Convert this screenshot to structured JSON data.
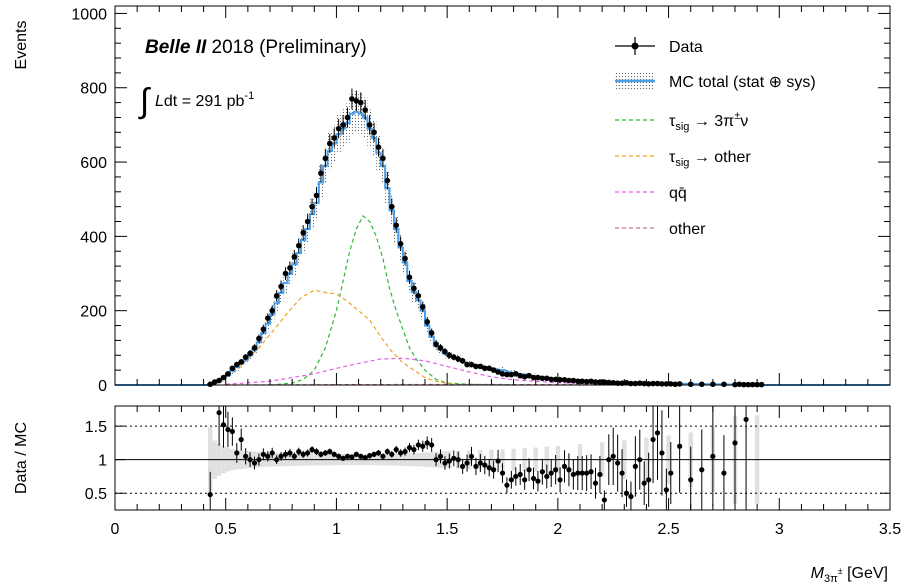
{
  "chart_data": [
    {
      "type": "line",
      "experiment": "Belle II",
      "title_rest": " 2018 (Preliminary)",
      "lumi_integral": "∫",
      "lumi_L": "L",
      "lumi_text": "dt = 291 pb",
      "lumi_exp": "-1",
      "ylabel": "Events",
      "xlabel_M": "M",
      "xlabel_sub": "3π",
      "xlabel_sup": "±",
      "xlabel_unit": " [GeV]",
      "xlim": [
        0,
        3.5
      ],
      "ylim": [
        0,
        1020
      ],
      "yticks": [
        "0",
        "200",
        "400",
        "600",
        "800",
        "1000"
      ],
      "legend_position": "top-right",
      "legend": [
        {
          "key": "data",
          "label": "Data"
        },
        {
          "key": "mc",
          "label": "MC total (stat ⊕ sys)"
        },
        {
          "key": "sig",
          "label_pre": "τ",
          "label_sub": "sig",
          "label_post": " → 3π",
          "label_sup": "±",
          "label_end": "ν"
        },
        {
          "key": "sigo",
          "label_pre": "τ",
          "label_sub": "sig",
          "label_post": " → other",
          "label_sup": "",
          "label_end": ""
        },
        {
          "key": "qq",
          "label": "qq̄"
        },
        {
          "key": "oth",
          "label": "other"
        }
      ],
      "colors": {
        "mc": "#4a9fe8",
        "sig": "#2fb82f",
        "sigo": "#f0a020",
        "qq": "#e860e8",
        "oth": "#c07890",
        "band": "#b0b0b0"
      },
      "data_points": {
        "x": [
          0.43,
          0.45,
          0.47,
          0.49,
          0.51,
          0.53,
          0.55,
          0.57,
          0.59,
          0.61,
          0.63,
          0.65,
          0.67,
          0.69,
          0.71,
          0.73,
          0.75,
          0.77,
          0.79,
          0.81,
          0.83,
          0.85,
          0.87,
          0.89,
          0.91,
          0.93,
          0.95,
          0.97,
          0.99,
          1.01,
          1.03,
          1.05,
          1.07,
          1.09,
          1.11,
          1.13,
          1.15,
          1.17,
          1.19,
          1.21,
          1.23,
          1.25,
          1.27,
          1.29,
          1.31,
          1.33,
          1.35,
          1.37,
          1.39,
          1.41,
          1.43,
          1.45,
          1.47,
          1.49,
          1.51,
          1.53,
          1.55,
          1.57,
          1.59,
          1.61,
          1.63,
          1.65,
          1.67,
          1.69,
          1.71,
          1.73,
          1.75,
          1.77,
          1.79,
          1.81,
          1.83,
          1.85,
          1.87,
          1.89,
          1.91,
          1.93,
          1.95,
          1.97,
          1.99,
          2.01,
          2.03,
          2.05,
          2.07,
          2.09,
          2.11,
          2.13,
          2.15,
          2.17,
          2.19,
          2.21,
          2.23,
          2.25,
          2.27,
          2.29,
          2.31,
          2.33,
          2.35,
          2.37,
          2.39,
          2.41,
          2.43,
          2.45,
          2.47,
          2.49,
          2.51,
          2.53,
          2.55,
          2.6,
          2.65,
          2.7,
          2.75,
          2.8,
          2.82,
          2.84,
          2.86,
          2.88,
          2.9,
          2.92
        ],
        "y": [
          2,
          8,
          12,
          20,
          30,
          45,
          55,
          62,
          75,
          85,
          100,
          125,
          150,
          180,
          200,
          240,
          265,
          300,
          315,
          345,
          375,
          410,
          440,
          480,
          510,
          570,
          610,
          650,
          665,
          690,
          700,
          720,
          770,
          765,
          760,
          740,
          700,
          680,
          640,
          610,
          550,
          480,
          430,
          380,
          340,
          290,
          260,
          240,
          210,
          170,
          140,
          110,
          100,
          90,
          80,
          75,
          70,
          65,
          55,
          55,
          50,
          50,
          45,
          45,
          40,
          35,
          30,
          28,
          28,
          30,
          25,
          22,
          25,
          20,
          20,
          18,
          18,
          15,
          15,
          14,
          14,
          12,
          12,
          10,
          10,
          9,
          10,
          8,
          8,
          8,
          7,
          6,
          5,
          5,
          6,
          4,
          4,
          5,
          4,
          3,
          4,
          4,
          3,
          3,
          3,
          2,
          3,
          2,
          2,
          2,
          2,
          1,
          2,
          1,
          1,
          1,
          1,
          1
        ]
      },
      "mc_total": {
        "x": [
          0.43,
          0.45,
          0.47,
          0.49,
          0.51,
          0.53,
          0.55,
          0.57,
          0.59,
          0.61,
          0.63,
          0.65,
          0.67,
          0.69,
          0.71,
          0.73,
          0.75,
          0.77,
          0.79,
          0.81,
          0.83,
          0.85,
          0.87,
          0.89,
          0.91,
          0.93,
          0.95,
          0.97,
          0.99,
          1.01,
          1.03,
          1.05,
          1.07,
          1.09,
          1.11,
          1.13,
          1.15,
          1.17,
          1.19,
          1.21,
          1.23,
          1.25,
          1.27,
          1.29,
          1.31,
          1.33,
          1.35,
          1.37,
          1.39,
          1.41,
          1.43,
          1.45,
          1.47,
          1.49,
          1.51,
          1.55,
          1.6,
          1.65,
          1.7,
          1.75,
          1.8,
          1.85,
          1.9,
          1.95,
          2.0,
          2.1,
          2.2,
          2.3,
          2.4,
          2.5,
          2.6,
          2.7,
          2.8,
          2.9
        ],
        "y": [
          2,
          7,
          11,
          18,
          27,
          38,
          48,
          58,
          68,
          80,
          95,
          115,
          140,
          165,
          190,
          220,
          248,
          275,
          300,
          325,
          355,
          390,
          420,
          460,
          490,
          545,
          590,
          630,
          650,
          675,
          690,
          705,
          730,
          735,
          730,
          720,
          690,
          665,
          625,
          590,
          530,
          470,
          420,
          370,
          330,
          280,
          250,
          228,
          200,
          160,
          130,
          105,
          95,
          85,
          78,
          70,
          58,
          52,
          45,
          40,
          33,
          28,
          24,
          20,
          17,
          12,
          9,
          7,
          5,
          4,
          3,
          2,
          1,
          1
        ]
      },
      "components": [
        {
          "key": "sig",
          "x": [
            0.7,
            0.8,
            0.85,
            0.9,
            0.95,
            1.0,
            1.03,
            1.06,
            1.09,
            1.12,
            1.15,
            1.18,
            1.21,
            1.24,
            1.27,
            1.3,
            1.33,
            1.36,
            1.4,
            1.45,
            1.5,
            1.6,
            1.7,
            1.8
          ],
          "y": [
            0,
            5,
            15,
            40,
            100,
            200,
            280,
            360,
            420,
            455,
            440,
            400,
            340,
            260,
            200,
            150,
            100,
            70,
            40,
            15,
            5,
            2,
            1,
            0
          ]
        },
        {
          "key": "sigo",
          "x": [
            0.45,
            0.55,
            0.65,
            0.72,
            0.78,
            0.84,
            0.9,
            0.96,
            1.0,
            1.05,
            1.1,
            1.15,
            1.2,
            1.25,
            1.3,
            1.35,
            1.4,
            1.45,
            1.5,
            1.55
          ],
          "y": [
            5,
            40,
            100,
            150,
            195,
            235,
            255,
            248,
            245,
            225,
            200,
            175,
            130,
            90,
            60,
            40,
            20,
            10,
            5,
            0
          ]
        },
        {
          "key": "qq",
          "x": [
            0.5,
            0.7,
            0.9,
            1.0,
            1.1,
            1.2,
            1.3,
            1.4,
            1.5,
            1.6,
            1.7,
            1.8,
            2.0,
            2.2,
            2.5,
            2.8
          ],
          "y": [
            2,
            10,
            30,
            45,
            58,
            70,
            72,
            65,
            50,
            35,
            22,
            14,
            6,
            3,
            1,
            0
          ]
        },
        {
          "key": "oth",
          "x": [
            0.5,
            1.0,
            1.5,
            2.0,
            2.5,
            3.0
          ],
          "y": [
            0,
            1,
            1.5,
            1,
            0.5,
            0
          ]
        }
      ],
      "colors_band_fill": "#e0e0e0"
    },
    {
      "type": "scatter",
      "ylabel": "Data / MC",
      "xlim": [
        0,
        3.5
      ],
      "ylim": [
        0.25,
        1.8
      ],
      "yticks": [
        "0.5",
        "1",
        "1.5"
      ],
      "xticks": [
        "0",
        "0.5",
        "1",
        "1.5",
        "2",
        "2.5",
        "3",
        "3.5"
      ],
      "ratio": {
        "x": [
          0.43,
          0.47,
          0.49,
          0.51,
          0.53,
          0.55,
          0.57,
          0.59,
          0.61,
          0.63,
          0.65,
          0.67,
          0.69,
          0.71,
          0.73,
          0.75,
          0.77,
          0.79,
          0.81,
          0.83,
          0.85,
          0.87,
          0.89,
          0.91,
          0.93,
          0.95,
          0.97,
          0.99,
          1.01,
          1.03,
          1.05,
          1.07,
          1.09,
          1.11,
          1.13,
          1.15,
          1.17,
          1.19,
          1.21,
          1.23,
          1.25,
          1.27,
          1.29,
          1.31,
          1.33,
          1.35,
          1.37,
          1.39,
          1.41,
          1.43,
          1.45,
          1.47,
          1.49,
          1.51,
          1.53,
          1.55,
          1.57,
          1.59,
          1.61,
          1.63,
          1.65,
          1.67,
          1.69,
          1.71,
          1.73,
          1.75,
          1.77,
          1.79,
          1.81,
          1.83,
          1.85,
          1.87,
          1.89,
          1.91,
          1.93,
          1.95,
          1.97,
          1.99,
          2.01,
          2.03,
          2.05,
          2.07,
          2.09,
          2.11,
          2.13,
          2.15,
          2.17,
          2.19,
          2.21,
          2.23,
          2.25,
          2.27,
          2.29,
          2.31,
          2.33,
          2.35,
          2.37,
          2.39,
          2.41,
          2.43,
          2.45,
          2.47,
          2.49,
          2.51,
          2.55,
          2.6,
          2.65,
          2.7,
          2.75,
          2.8,
          2.85
        ],
        "y": [
          0.48,
          1.7,
          1.52,
          1.45,
          1.42,
          1.1,
          1.3,
          1.05,
          1.0,
          0.95,
          1.0,
          1.08,
          1.05,
          1.1,
          1.0,
          1.05,
          1.08,
          1.1,
          1.05,
          1.12,
          1.08,
          1.1,
          1.15,
          1.12,
          1.08,
          1.1,
          1.12,
          1.08,
          1.05,
          1.02,
          1.05,
          1.04,
          1.08,
          1.05,
          1.03,
          1.06,
          1.08,
          1.1,
          1.05,
          1.12,
          1.08,
          1.15,
          1.1,
          1.12,
          1.18,
          1.15,
          1.22,
          1.2,
          1.25,
          1.22,
          1.0,
          1.05,
          0.95,
          0.98,
          1.02,
          1.0,
          0.9,
          0.95,
          1.05,
          0.9,
          0.95,
          0.92,
          0.88,
          0.85,
          0.98,
          0.8,
          0.62,
          0.7,
          0.75,
          0.78,
          0.7,
          0.85,
          0.72,
          0.68,
          0.82,
          0.75,
          0.8,
          0.85,
          0.7,
          0.9,
          0.85,
          0.78,
          0.8,
          0.8,
          0.8,
          0.82,
          0.65,
          0.78,
          0.4,
          1.0,
          1.05,
          0.95,
          0.8,
          0.5,
          0.45,
          0.9,
          1.0,
          0.65,
          0.7,
          1.3,
          1.4,
          1.1,
          0.55,
          0.8,
          1.2,
          0.7,
          0.85,
          1.05,
          0.8,
          1.25,
          1.6
        ]
      }
    }
  ]
}
